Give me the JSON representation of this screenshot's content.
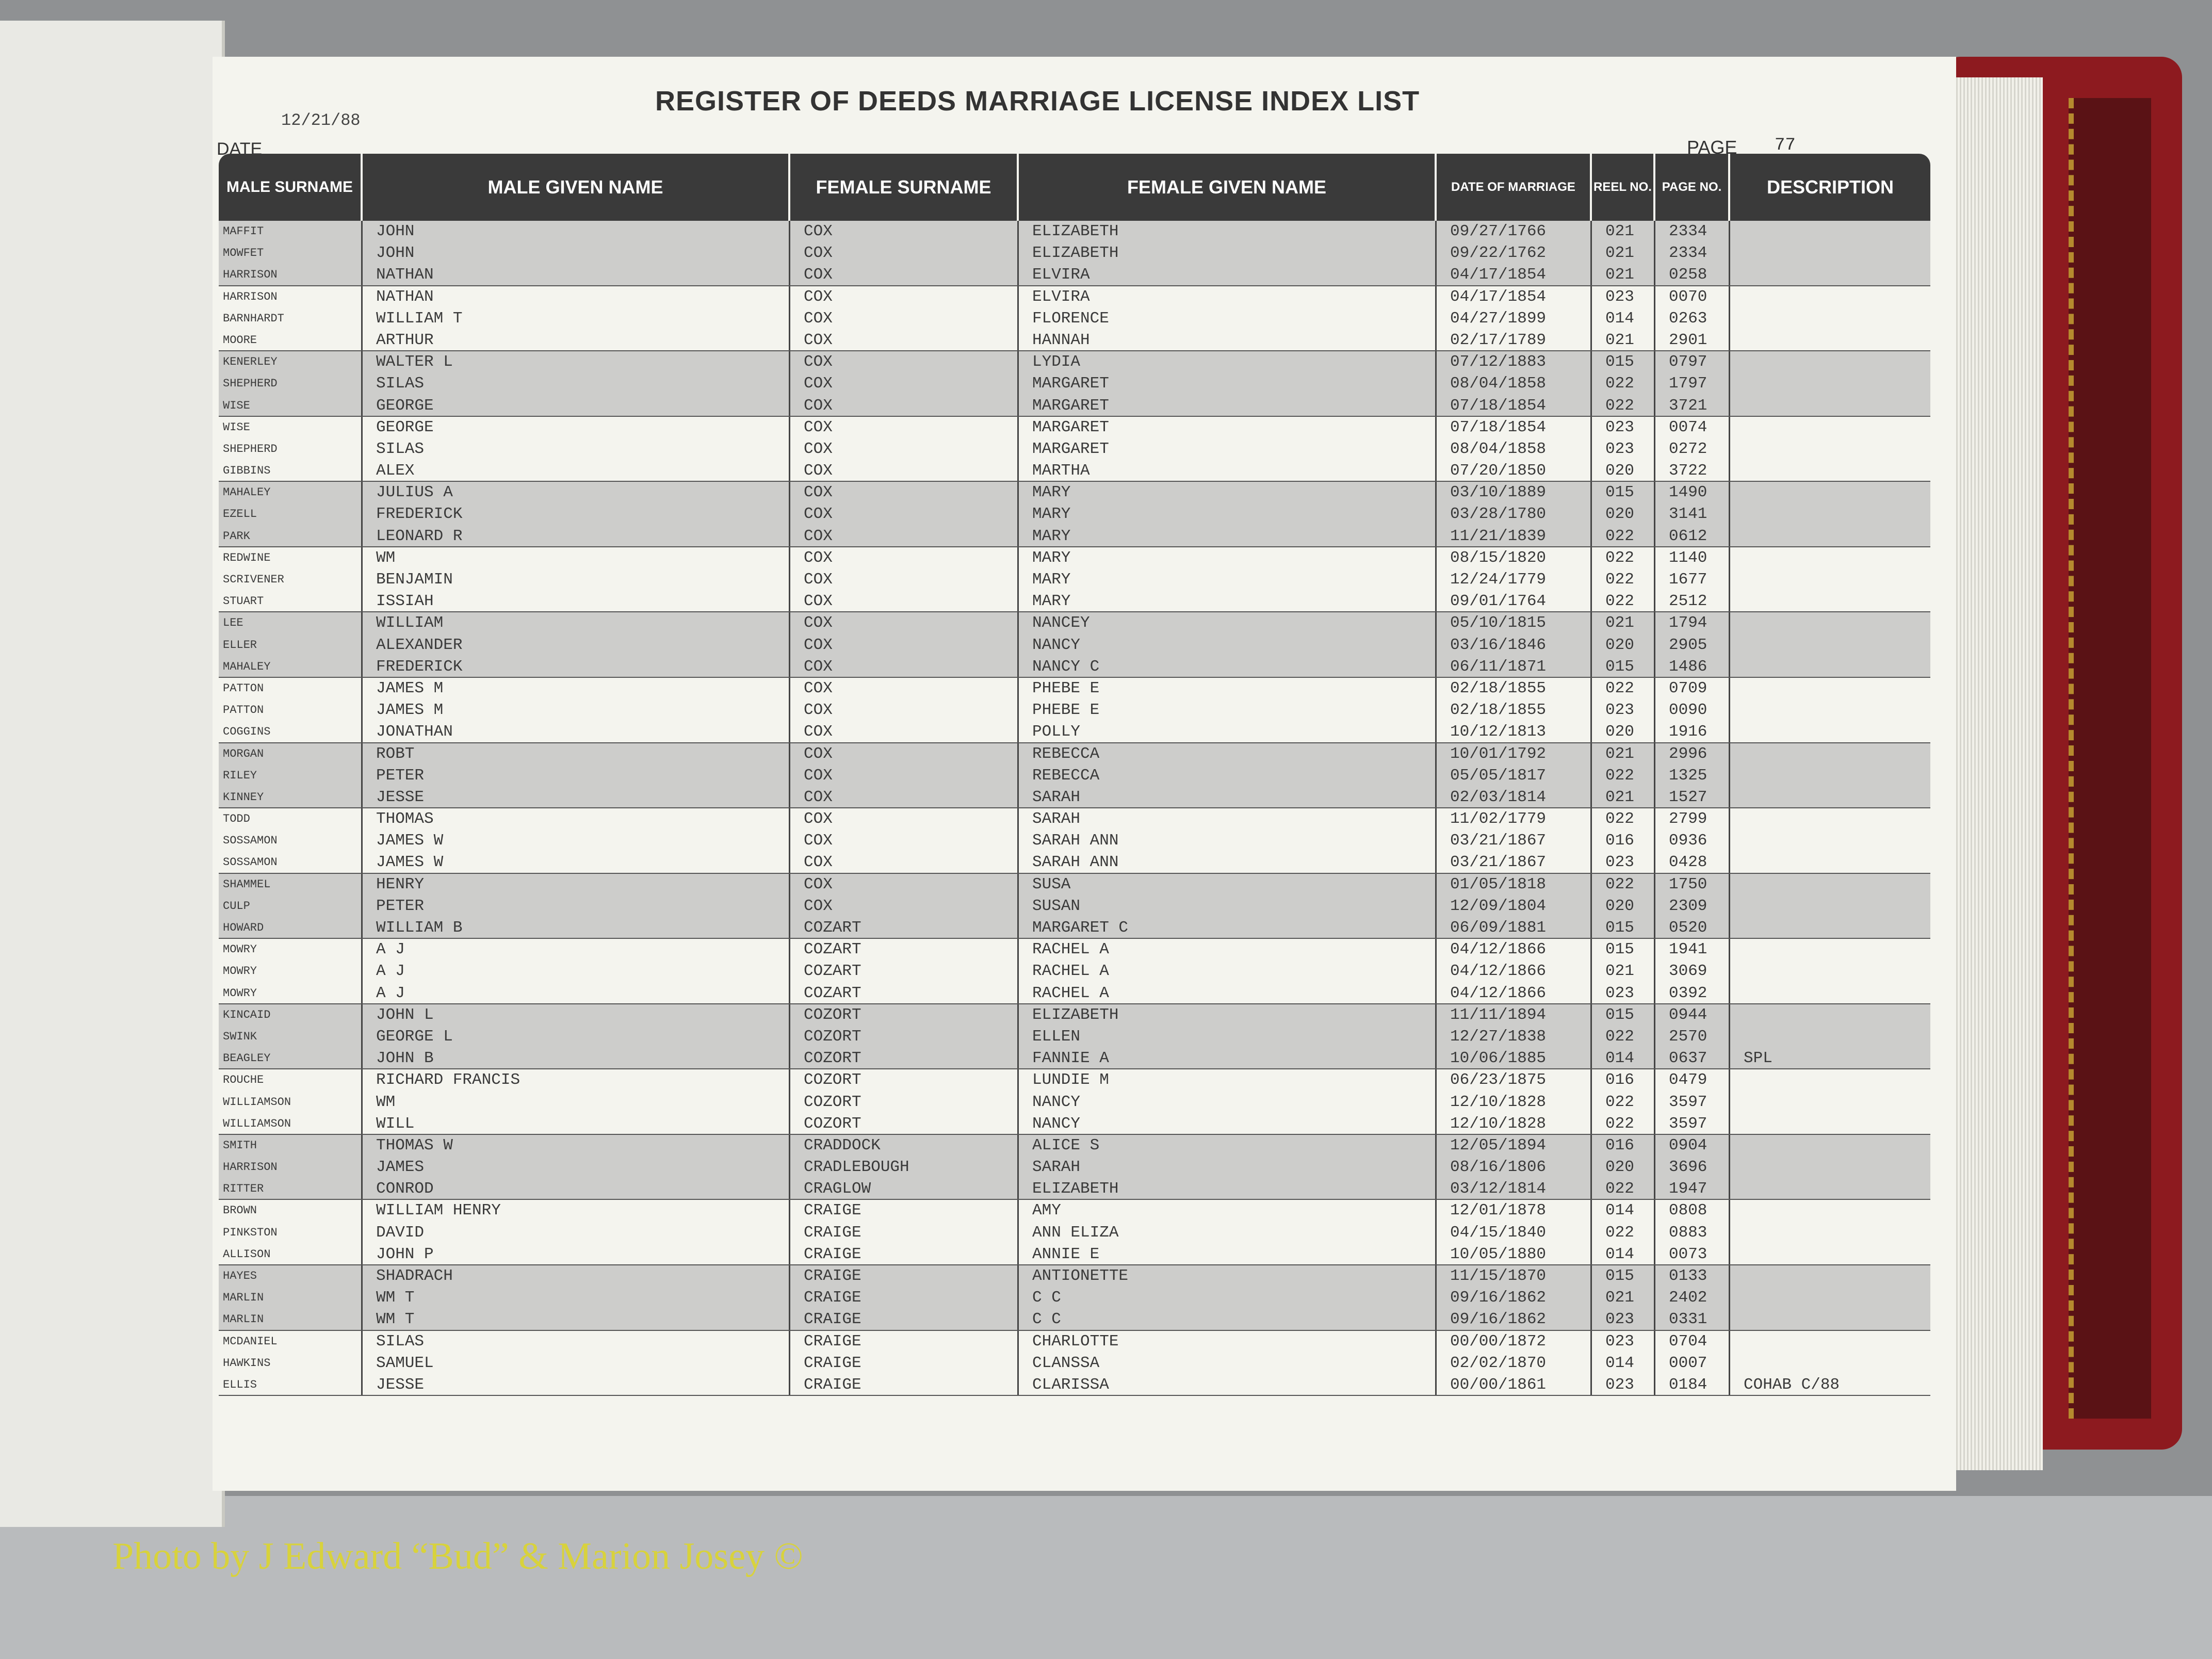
{
  "header": {
    "title": "REGISTER OF DEEDS MARRIAGE LICENSE INDEX LIST",
    "date_label": "DATE",
    "date": "12/21/88",
    "page_label": "PAGE",
    "page": "77"
  },
  "table": {
    "columns": [
      "MALE SURNAME",
      "MALE GIVEN NAME",
      "FEMALE SURNAME",
      "FEMALE GIVEN NAME",
      "DATE OF MARRIAGE",
      "REEL NO.",
      "PAGE NO.",
      "DESCRIPTION"
    ],
    "rows": [
      [
        "MAFFIT",
        "JOHN",
        "COX",
        "ELIZABETH",
        "09/27/1766",
        "021",
        "2334"
      ],
      [
        "MOWFET",
        "JOHN",
        "COX",
        "ELIZABETH",
        "09/22/1762",
        "021",
        "2334"
      ],
      [
        "HARRISON",
        "NATHAN",
        "COX",
        "ELVIRA",
        "04/17/1854",
        "021",
        "0258"
      ],
      [
        "HARRISON",
        "NATHAN",
        "COX",
        "ELVIRA",
        "04/17/1854",
        "023",
        "0070"
      ],
      [
        "BARNHARDT",
        "WILLIAM T",
        "COX",
        "FLORENCE",
        "04/27/1899",
        "014",
        "0263"
      ],
      [
        "MOORE",
        "ARTHUR",
        "COX",
        "HANNAH",
        "02/17/1789",
        "021",
        "2901"
      ],
      [
        "KENERLEY",
        "WALTER L",
        "COX",
        "LYDIA",
        "07/12/1883",
        "015",
        "0797"
      ],
      [
        "SHEPHERD",
        "SILAS",
        "COX",
        "MARGARET",
        "08/04/1858",
        "022",
        "1797"
      ],
      [
        "WISE",
        "GEORGE",
        "COX",
        "MARGARET",
        "07/18/1854",
        "022",
        "3721"
      ],
      [
        "WISE",
        "GEORGE",
        "COX",
        "MARGARET",
        "07/18/1854",
        "023",
        "0074"
      ],
      [
        "SHEPHERD",
        "SILAS",
        "COX",
        "MARGARET",
        "08/04/1858",
        "023",
        "0272"
      ],
      [
        "GIBBINS",
        "ALEX",
        "COX",
        "MARTHA",
        "07/20/1850",
        "020",
        "3722"
      ],
      [
        "MAHALEY",
        "JULIUS A",
        "COX",
        "MARY",
        "03/10/1889",
        "015",
        "1490"
      ],
      [
        "EZELL",
        "FREDERICK",
        "COX",
        "MARY",
        "03/28/1780",
        "020",
        "3141"
      ],
      [
        "PARK",
        "LEONARD R",
        "COX",
        "MARY",
        "11/21/1839",
        "022",
        "0612"
      ],
      [
        "REDWINE",
        "WM",
        "COX",
        "MARY",
        "08/15/1820",
        "022",
        "1140"
      ],
      [
        "SCRIVENER",
        "BENJAMIN",
        "COX",
        "MARY",
        "12/24/1779",
        "022",
        "1677"
      ],
      [
        "STUART",
        "ISSIAH",
        "COX",
        "MARY",
        "09/01/1764",
        "022",
        "2512"
      ],
      [
        "LEE",
        "WILLIAM",
        "COX",
        "NANCEY",
        "05/10/1815",
        "021",
        "1794"
      ],
      [
        "ELLER",
        "ALEXANDER",
        "COX",
        "NANCY",
        "03/16/1846",
        "020",
        "2905"
      ],
      [
        "MAHALEY",
        "FREDERICK",
        "COX",
        "NANCY C",
        "06/11/1871",
        "015",
        "1486"
      ],
      [
        "PATTON",
        "JAMES M",
        "COX",
        "PHEBE E",
        "02/18/1855",
        "022",
        "0709"
      ],
      [
        "PATTON",
        "JAMES M",
        "COX",
        "PHEBE E",
        "02/18/1855",
        "023",
        "0090"
      ],
      [
        "COGGINS",
        "JONATHAN",
        "COX",
        "POLLY",
        "10/12/1813",
        "020",
        "1916"
      ],
      [
        "MORGAN",
        "ROBT",
        "COX",
        "REBECCA",
        "10/01/1792",
        "021",
        "2996"
      ],
      [
        "RILEY",
        "PETER",
        "COX",
        "REBECCA",
        "05/05/1817",
        "022",
        "1325"
      ],
      [
        "KINNEY",
        "JESSE",
        "COX",
        "SARAH",
        "02/03/1814",
        "021",
        "1527"
      ],
      [
        "TODD",
        "THOMAS",
        "COX",
        "SARAH",
        "11/02/1779",
        "022",
        "2799"
      ],
      [
        "SOSSAMON",
        "JAMES W",
        "COX",
        "SARAH ANN",
        "03/21/1867",
        "016",
        "0936"
      ],
      [
        "SOSSAMON",
        "JAMES W",
        "COX",
        "SARAH ANN",
        "03/21/1867",
        "023",
        "0428"
      ],
      [
        "SHAMMEL",
        "HENRY",
        "COX",
        "SUSA",
        "01/05/1818",
        "022",
        "1750"
      ],
      [
        "CULP",
        "PETER",
        "COX",
        "SUSAN",
        "12/09/1804",
        "020",
        "2309"
      ],
      [
        "HOWARD",
        "WILLIAM B",
        "COZART",
        "MARGARET C",
        "06/09/1881",
        "015",
        "0520"
      ],
      [
        "MOWRY",
        "A J",
        "COZART",
        "RACHEL A",
        "04/12/1866",
        "015",
        "1941"
      ],
      [
        "MOWRY",
        "A J",
        "COZART",
        "RACHEL A",
        "04/12/1866",
        "021",
        "3069"
      ],
      [
        "MOWRY",
        "A J",
        "COZART",
        "RACHEL A",
        "04/12/1866",
        "023",
        "0392"
      ],
      [
        "KINCAID",
        "JOHN L",
        "COZORT",
        "ELIZABETH",
        "11/11/1894",
        "015",
        "0944"
      ],
      [
        "SWINK",
        "GEORGE L",
        "COZORT",
        "ELLEN",
        "12/27/1838",
        "022",
        "2570"
      ],
      [
        "BEAGLEY",
        "JOHN B",
        "COZORT",
        "FANNIE A",
        "10/06/1885",
        "014",
        "0637",
        "SPL"
      ],
      [
        "ROUCHE",
        "RICHARD FRANCIS",
        "COZORT",
        "LUNDIE M",
        "06/23/1875",
        "016",
        "0479"
      ],
      [
        "WILLIAMSON",
        "WM",
        "COZORT",
        "NANCY",
        "12/10/1828",
        "022",
        "3597"
      ],
      [
        "WILLIAMSON",
        "WILL",
        "COZORT",
        "NANCY",
        "12/10/1828",
        "022",
        "3597"
      ],
      [
        "SMITH",
        "THOMAS W",
        "CRADDOCK",
        "ALICE S",
        "12/05/1894",
        "016",
        "0904"
      ],
      [
        "HARRISON",
        "JAMES",
        "CRADLEBOUGH",
        "SARAH",
        "08/16/1806",
        "020",
        "3696"
      ],
      [
        "RITTER",
        "CONROD",
        "CRAGLOW",
        "ELIZABETH",
        "03/12/1814",
        "022",
        "1947"
      ],
      [
        "BROWN",
        "WILLIAM HENRY",
        "CRAIGE",
        "AMY",
        "12/01/1878",
        "014",
        "0808"
      ],
      [
        "PINKSTON",
        "DAVID",
        "CRAIGE",
        "ANN ELIZA",
        "04/15/1840",
        "022",
        "0883"
      ],
      [
        "ALLISON",
        "JOHN P",
        "CRAIGE",
        "ANNIE E",
        "10/05/1880",
        "014",
        "0073"
      ],
      [
        "HAYES",
        "SHADRACH",
        "CRAIGE",
        "ANTIONETTE",
        "11/15/1870",
        "015",
        "0133"
      ],
      [
        "MARLIN",
        "WM T",
        "CRAIGE",
        "C C",
        "09/16/1862",
        "021",
        "2402"
      ],
      [
        "MARLIN",
        "WM T",
        "CRAIGE",
        "C C",
        "09/16/1862",
        "023",
        "0331"
      ],
      [
        "MCDANIEL",
        "SILAS",
        "CRAIGE",
        "CHARLOTTE",
        "00/00/1872",
        "023",
        "0704"
      ],
      [
        "HAWKINS",
        "SAMUEL",
        "CRAIGE",
        "CLANSSA",
        "02/02/1870",
        "014",
        "0007"
      ],
      [
        "ELLIS",
        "JESSE",
        "CRAIGE",
        "CLARISSA",
        "00/00/1861",
        "023",
        "0184",
        "COHAB C/88"
      ]
    ]
  },
  "credit": "Photo by J Edward “Bud” & Marion Josey ©"
}
